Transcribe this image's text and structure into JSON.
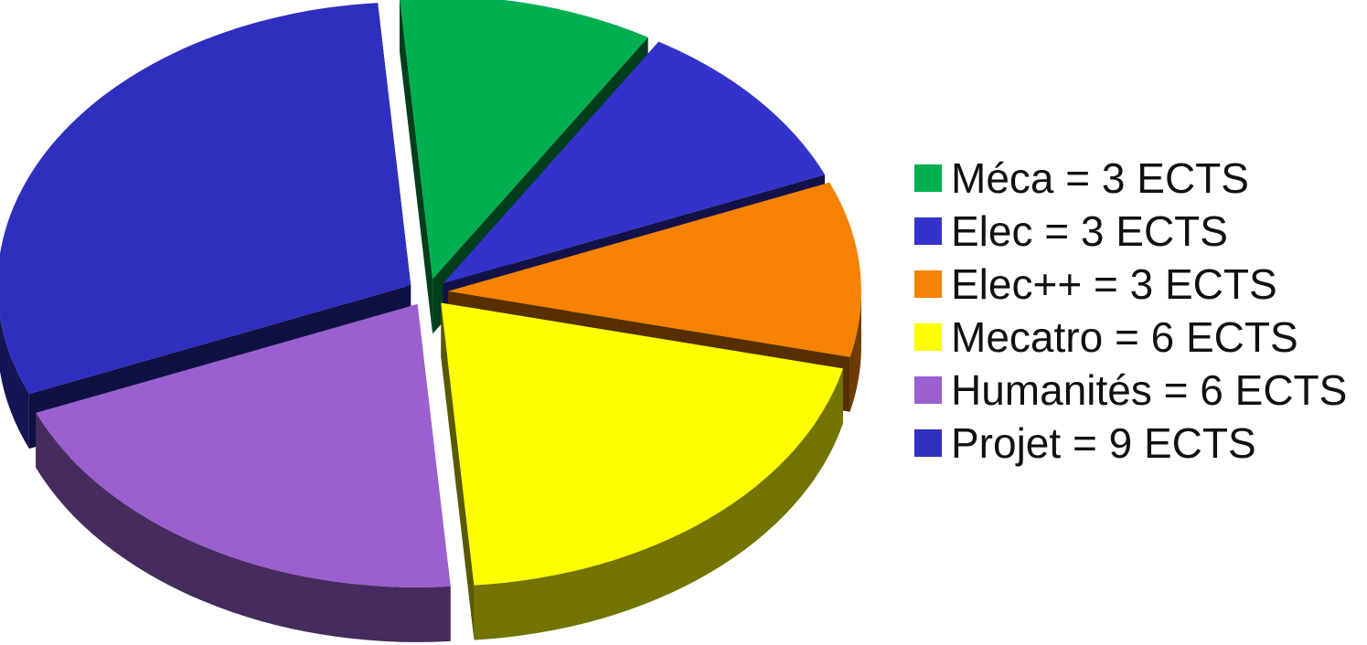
{
  "chart_data": {
    "type": "pie",
    "title": "",
    "unit": "ECTS",
    "legend_position": "right",
    "slices": [
      {
        "label": "Méca = 3 ECTS",
        "value": 3,
        "color": "#00b050"
      },
      {
        "label": "Elec = 3 ECTS",
        "value": 3,
        "color": "#3333cc"
      },
      {
        "label": "Elec++ = 3 ECTS",
        "value": 3,
        "color": "#f58200"
      },
      {
        "label": "Mecatro = 6 ECTS",
        "value": 6,
        "color": "#ffff00"
      },
      {
        "label": "Humanités = 6 ECTS",
        "value": 6,
        "color": "#9c5fd0"
      },
      {
        "label": "Projet = 9 ECTS",
        "value": 9,
        "color": "#2f2fbf"
      }
    ]
  }
}
